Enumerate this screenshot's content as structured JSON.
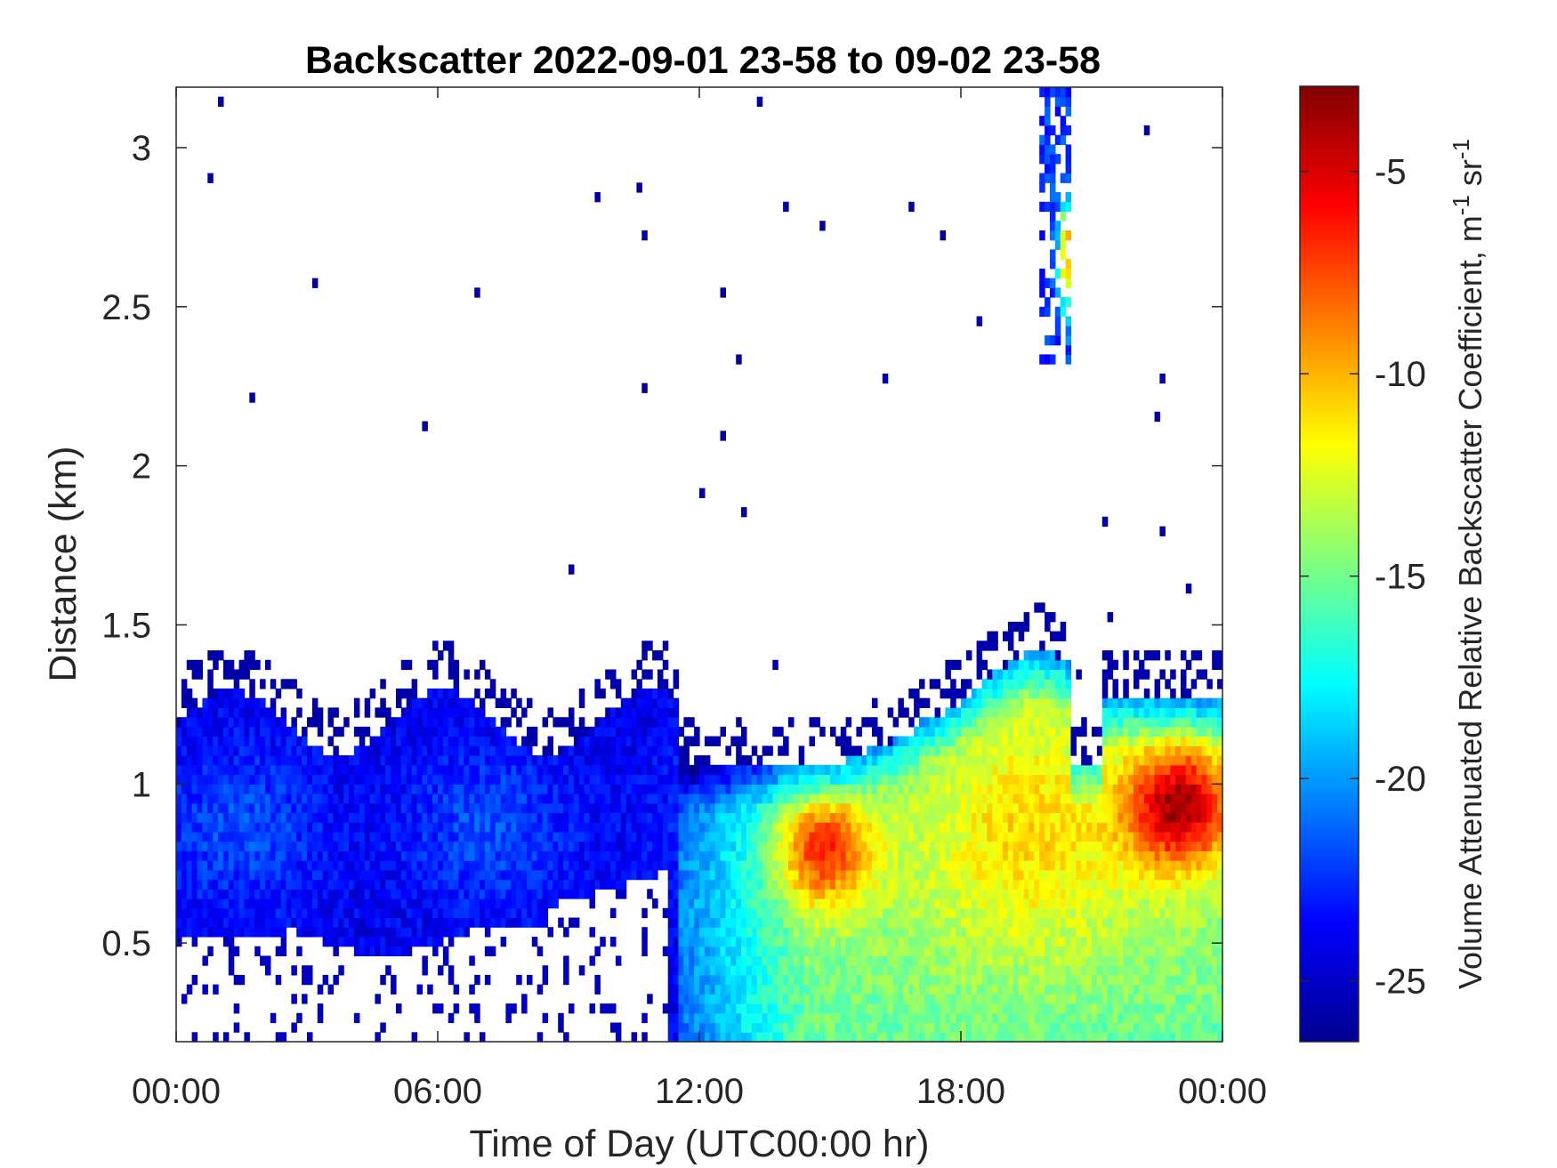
{
  "chart_data": {
    "type": "heatmap",
    "title": "Backscatter 2022-09-01 23-58 to 09-02 23-58",
    "xlabel": "Time of Day (UTC00:00 hr)",
    "ylabel": "Distance (km)",
    "xlim": [
      0,
      24
    ],
    "ylim": [
      0.19,
      3.19
    ],
    "x_ticks": [
      {
        "value": 0,
        "label": "00:00"
      },
      {
        "value": 6,
        "label": "06:00"
      },
      {
        "value": 12,
        "label": "12:00"
      },
      {
        "value": 18,
        "label": "18:00"
      },
      {
        "value": 24,
        "label": "00:00"
      }
    ],
    "y_ticks": [
      {
        "value": 0.5,
        "label": "0.5"
      },
      {
        "value": 1,
        "label": "1"
      },
      {
        "value": 1.5,
        "label": "1.5"
      },
      {
        "value": 2,
        "label": "2"
      },
      {
        "value": 2.5,
        "label": "2.5"
      },
      {
        "value": 3,
        "label": "3"
      }
    ],
    "colorbar": {
      "label": "Volume Attenuated Relative Backscatter Coefficient, m",
      "label_sup1": "-1",
      "label_mid": " sr",
      "label_sup2": "-1",
      "colormap": "jet",
      "range": [
        -26.5,
        -2.9
      ],
      "ticks": [
        {
          "value": -5,
          "label": "-5"
        },
        {
          "value": -10,
          "label": "-10"
        },
        {
          "value": -15,
          "label": "-15"
        },
        {
          "value": -20,
          "label": "-20"
        },
        {
          "value": -25,
          "label": "-25"
        }
      ]
    },
    "features": [
      {
        "name": "night boundary layer",
        "time_range": [
          0,
          11.5
        ],
        "height_range": [
          0.5,
          1.3
        ],
        "value": -23
      },
      {
        "name": "daytime mixed layer",
        "time_range": [
          11.5,
          24
        ],
        "height_range": [
          0.19,
          1.4
        ],
        "value": -17
      },
      {
        "name": "afternoon maximum",
        "time_range": [
          13.5,
          16
        ],
        "height_range": [
          0.65,
          0.95
        ],
        "value": -12
      },
      {
        "name": "evening maximum",
        "time_range": [
          21.5,
          24
        ],
        "height_range": [
          0.75,
          1.15
        ],
        "value": -8
      },
      {
        "name": "elevated cloud layer",
        "time_range": [
          19.6,
          20.6
        ],
        "height_range": [
          2.3,
          3.19
        ],
        "value": -20
      },
      {
        "name": "elevated cloud core",
        "time_range": [
          20.2,
          20.5
        ],
        "height_range": [
          2.55,
          2.75
        ],
        "value": -9
      }
    ],
    "grid": false
  }
}
